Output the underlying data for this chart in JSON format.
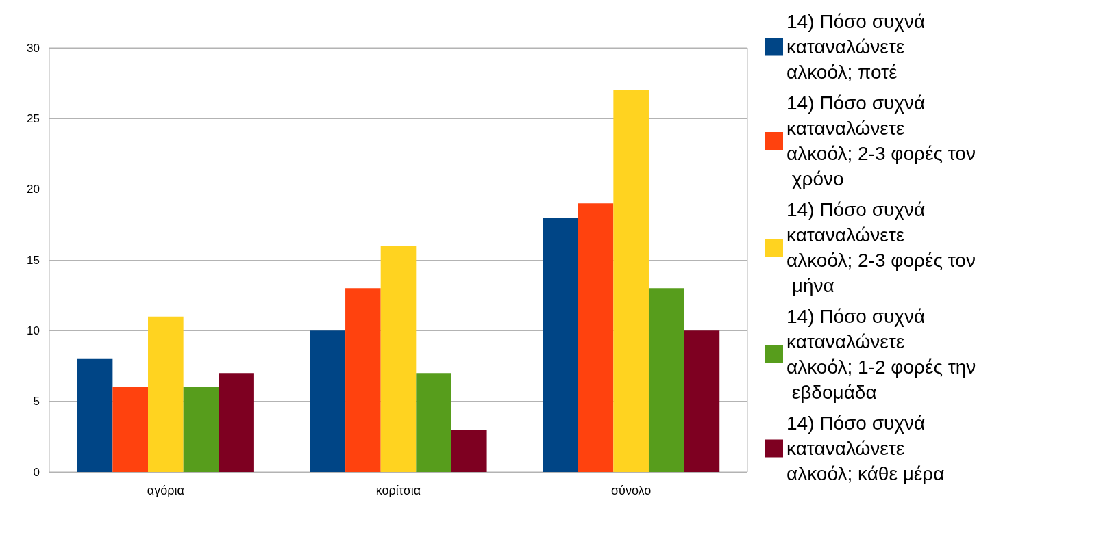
{
  "chart_data": {
    "type": "bar",
    "categories": [
      "αγόρια",
      "κορίτσια",
      "σύνολο"
    ],
    "series": [
      {
        "name": "14) Πόσο συχνά καταναλώνετε αλκοόλ; ποτέ",
        "color": "#004586",
        "values": [
          8,
          10,
          18
        ]
      },
      {
        "name": "14) Πόσο συχνά καταναλώνετε αλκοόλ; 2-3 φορές τον χρόνο",
        "color": "#ff420e",
        "values": [
          6,
          13,
          19
        ]
      },
      {
        "name": "14) Πόσο συχνά καταναλώνετε αλκοόλ; 2-3 φορές τον μήνα",
        "color": "#ffd320",
        "values": [
          11,
          16,
          27
        ]
      },
      {
        "name": "14) Πόσο συχνά καταναλώνετε αλκοόλ; 1-2 φορές την εβδομάδα",
        "color": "#579d1c",
        "values": [
          6,
          7,
          13
        ]
      },
      {
        "name": "14) Πόσο συχνά καταναλώνετε αλκοόλ; κάθε μέρα",
        "color": "#7e0021",
        "values": [
          7,
          3,
          10
        ]
      }
    ],
    "ylim": [
      0,
      30
    ],
    "yticks": [
      0,
      5,
      10,
      15,
      20,
      25,
      30
    ],
    "grid": "y",
    "legend": "right"
  }
}
